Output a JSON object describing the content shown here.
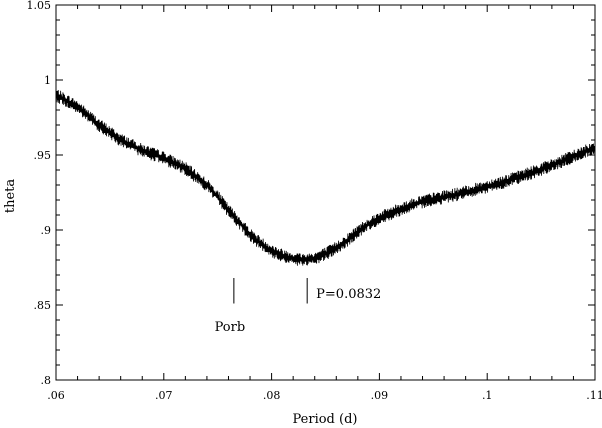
{
  "chart_data": {
    "type": "line",
    "xlabel": "Period (d)",
    "ylabel": "theta",
    "xlim": [
      0.06,
      0.11
    ],
    "ylim": [
      0.8,
      1.05
    ],
    "x_ticks": [
      {
        "value": 0.06,
        "label": ".06"
      },
      {
        "value": 0.07,
        "label": ".07"
      },
      {
        "value": 0.08,
        "label": ".08"
      },
      {
        "value": 0.09,
        "label": ".09"
      },
      {
        "value": 0.1,
        "label": ".1"
      },
      {
        "value": 0.11,
        "label": ".11"
      }
    ],
    "y_ticks": [
      {
        "value": 0.8,
        "label": ".8"
      },
      {
        "value": 0.85,
        "label": ".85"
      },
      {
        "value": 0.9,
        "label": ".9"
      },
      {
        "value": 0.95,
        "label": ".95"
      },
      {
        "value": 1.0,
        "label": "1"
      },
      {
        "value": 1.05,
        "label": "1.05"
      }
    ],
    "series": [
      {
        "x": [
          0.06,
          0.062,
          0.064,
          0.066,
          0.068,
          0.07,
          0.072,
          0.074,
          0.075,
          0.076,
          0.077,
          0.078,
          0.079,
          0.08,
          0.081,
          0.082,
          0.083,
          0.084,
          0.085,
          0.086,
          0.087,
          0.088,
          0.089,
          0.09,
          0.092,
          0.094,
          0.096,
          0.098,
          0.1,
          0.102,
          0.104,
          0.106,
          0.108,
          0.11
        ],
        "values": [
          0.99,
          0.982,
          0.97,
          0.96,
          0.953,
          0.948,
          0.941,
          0.93,
          0.922,
          0.913,
          0.905,
          0.897,
          0.891,
          0.886,
          0.883,
          0.881,
          0.88,
          0.881,
          0.884,
          0.888,
          0.893,
          0.899,
          0.904,
          0.908,
          0.914,
          0.919,
          0.922,
          0.925,
          0.929,
          0.933,
          0.938,
          0.943,
          0.949,
          0.955
        ],
        "noise_amplitude": 0.0035
      }
    ],
    "annotations": [
      {
        "label": "Porb",
        "x": 0.0765,
        "marker_y_range": [
          0.851,
          0.868
        ]
      },
      {
        "label": "P=0.0832",
        "x": 0.0833,
        "marker_y_range": [
          0.851,
          0.868
        ]
      }
    ],
    "grid": false,
    "legend": "none"
  }
}
